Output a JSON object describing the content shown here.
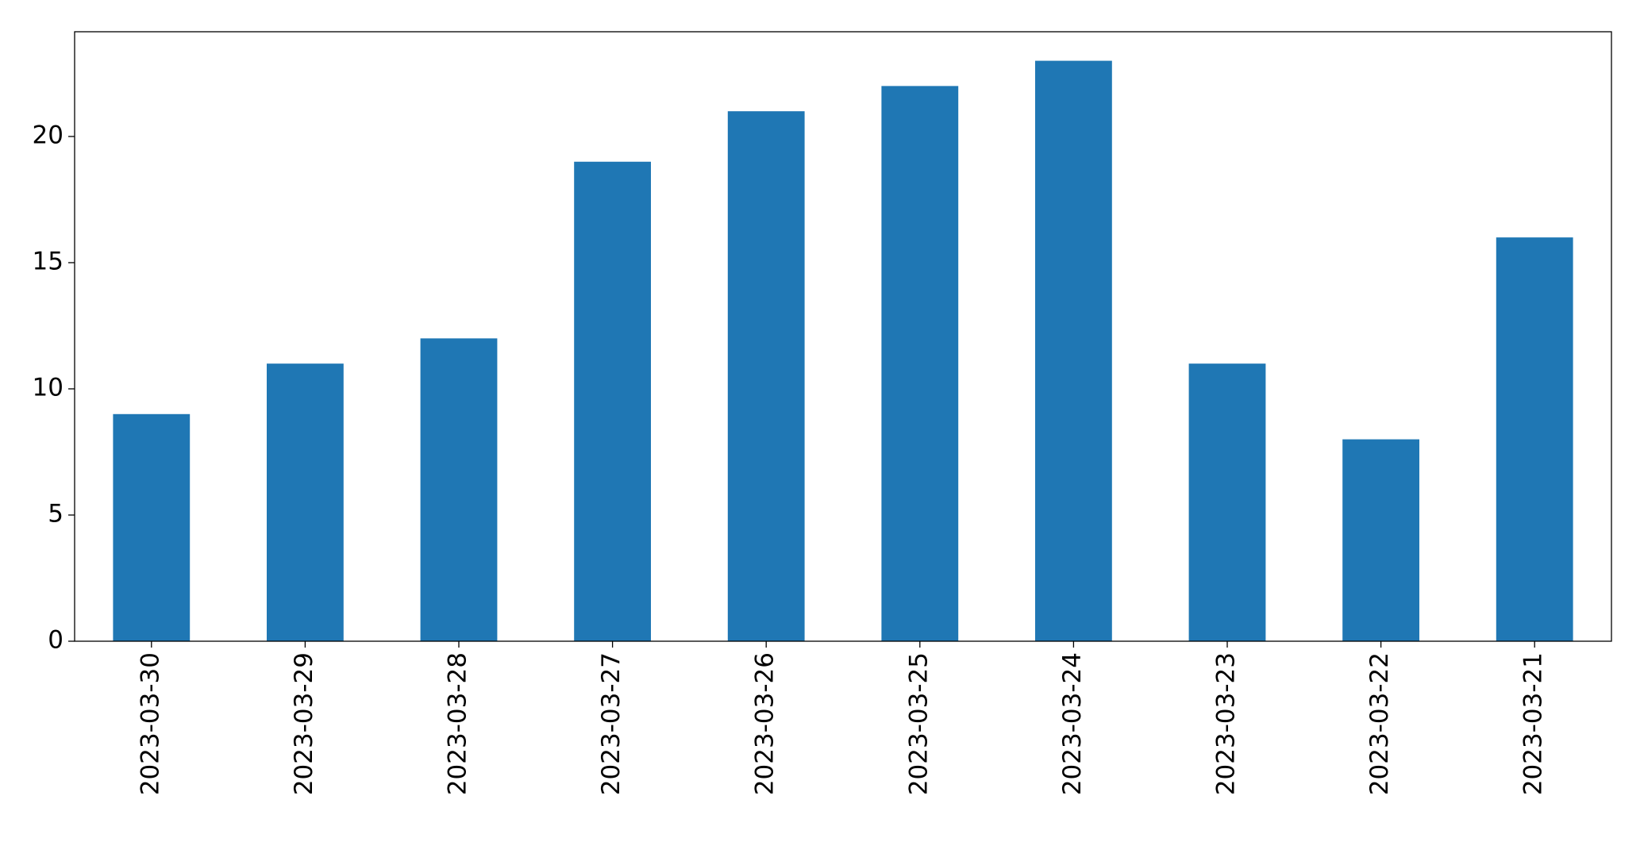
{
  "chart_data": {
    "type": "bar",
    "categories": [
      "2023-03-30",
      "2023-03-29",
      "2023-03-28",
      "2023-03-27",
      "2023-03-26",
      "2023-03-25",
      "2023-03-24",
      "2023-03-23",
      "2023-03-22",
      "2023-03-21"
    ],
    "values": [
      9,
      11,
      12,
      19,
      21,
      22,
      23,
      11,
      8,
      16
    ],
    "color": "#1f77b4",
    "ylim": [
      0,
      24.15
    ],
    "yticks": [
      0,
      5,
      10,
      15,
      20
    ],
    "grid": false
  }
}
